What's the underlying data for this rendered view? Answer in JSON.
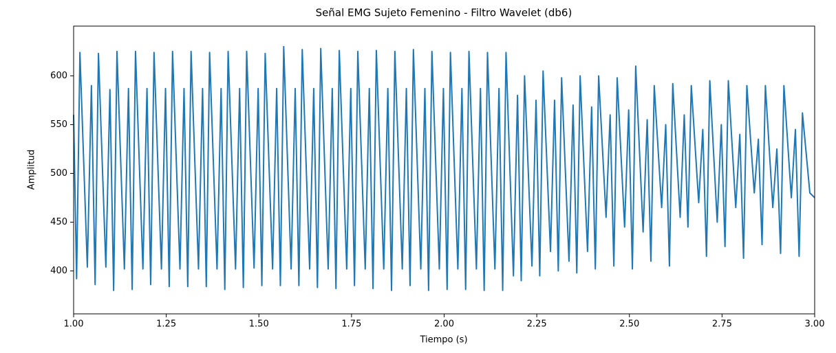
{
  "chart_data": {
    "type": "line",
    "title": "Señal EMG Sujeto Femenino - Filtro Wavelet (db6)",
    "xlabel": "Tiempo (s)",
    "ylabel": "Amplitud",
    "color": "#1f77b4",
    "xlim": [
      1,
      3
    ],
    "ylim": [
      356,
      651
    ],
    "xticks": [
      {
        "value": 1,
        "label": "1.00"
      },
      1.25,
      {
        "value": 1.5,
        "label": "1.50"
      },
      1.75,
      {
        "value": 2,
        "label": "2.00"
      },
      2.25,
      {
        "value": 2.5,
        "label": "2.50"
      },
      2.75,
      {
        "value": 3,
        "label": "3.00"
      }
    ],
    "yticks": [
      400,
      450,
      500,
      550,
      600
    ],
    "x": [
      1.0,
      1.008,
      1.017,
      1.037,
      1.048,
      1.058,
      1.067,
      1.087,
      1.098,
      1.108,
      1.117,
      1.137,
      1.148,
      1.158,
      1.167,
      1.187,
      1.198,
      1.208,
      1.217,
      1.237,
      1.248,
      1.258,
      1.267,
      1.287,
      1.298,
      1.308,
      1.317,
      1.337,
      1.348,
      1.358,
      1.367,
      1.387,
      1.398,
      1.408,
      1.417,
      1.437,
      1.448,
      1.458,
      1.467,
      1.487,
      1.498,
      1.508,
      1.517,
      1.537,
      1.548,
      1.558,
      1.567,
      1.587,
      1.598,
      1.608,
      1.617,
      1.637,
      1.648,
      1.658,
      1.667,
      1.687,
      1.698,
      1.708,
      1.717,
      1.737,
      1.748,
      1.758,
      1.767,
      1.787,
      1.798,
      1.808,
      1.817,
      1.837,
      1.848,
      1.858,
      1.867,
      1.887,
      1.898,
      1.908,
      1.917,
      1.937,
      1.948,
      1.958,
      1.967,
      1.987,
      1.998,
      2.008,
      2.017,
      2.037,
      2.048,
      2.058,
      2.067,
      2.087,
      2.098,
      2.108,
      2.117,
      2.137,
      2.148,
      2.158,
      2.167,
      2.187,
      2.198,
      2.208,
      2.217,
      2.237,
      2.248,
      2.258,
      2.267,
      2.287,
      2.298,
      2.308,
      2.317,
      2.337,
      2.348,
      2.358,
      2.367,
      2.387,
      2.398,
      2.408,
      2.417,
      2.437,
      2.448,
      2.458,
      2.467,
      2.487,
      2.498,
      2.508,
      2.517,
      2.537,
      2.548,
      2.558,
      2.567,
      2.587,
      2.598,
      2.608,
      2.617,
      2.637,
      2.648,
      2.658,
      2.667,
      2.687,
      2.698,
      2.708,
      2.717,
      2.737,
      2.748,
      2.758,
      2.767,
      2.787,
      2.798,
      2.808,
      2.817,
      2.837,
      2.848,
      2.858,
      2.867,
      2.887,
      2.898,
      2.908,
      2.917,
      2.937,
      2.948,
      2.958,
      2.967,
      2.987,
      3.0
    ],
    "values": [
      560,
      392,
      624,
      404,
      590,
      386,
      623,
      404,
      586,
      380,
      625,
      402,
      587,
      381,
      625,
      402,
      587,
      386,
      624,
      402,
      587,
      384,
      625,
      402,
      587,
      384,
      625,
      402,
      587,
      384,
      624,
      402,
      587,
      381,
      625,
      402,
      587,
      383,
      625,
      403,
      587,
      385,
      623,
      402,
      587,
      385,
      630,
      402,
      587,
      385,
      627,
      402,
      587,
      383,
      628,
      402,
      587,
      382,
      626,
      402,
      587,
      385,
      625,
      402,
      587,
      382,
      626,
      402,
      587,
      380,
      625,
      402,
      587,
      385,
      627,
      402,
      587,
      380,
      625,
      402,
      587,
      381,
      624,
      402,
      587,
      381,
      625,
      402,
      587,
      380,
      624,
      402,
      587,
      380,
      624,
      395,
      580,
      390,
      600,
      405,
      575,
      395,
      605,
      420,
      575,
      400,
      598,
      410,
      570,
      398,
      600,
      420,
      568,
      402,
      600,
      455,
      560,
      405,
      598,
      445,
      565,
      402,
      610,
      440,
      555,
      410,
      590,
      465,
      550,
      405,
      592,
      455,
      560,
      445,
      590,
      470,
      545,
      415,
      595,
      450,
      550,
      425,
      595,
      465,
      540,
      413,
      590,
      480,
      535,
      427,
      590,
      465,
      525,
      418,
      590,
      475,
      545,
      415,
      562,
      480,
      475
    ]
  }
}
